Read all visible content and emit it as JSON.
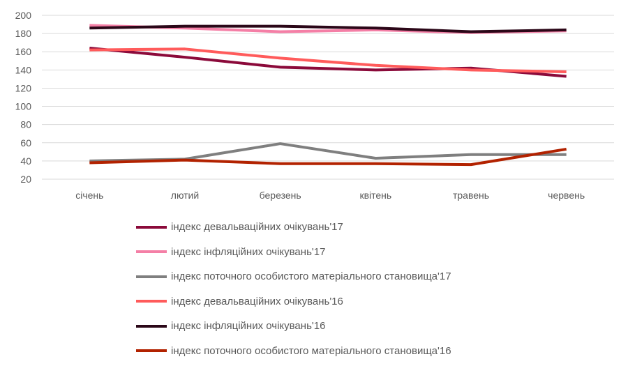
{
  "chart_data": {
    "type": "line",
    "title": "",
    "xlabel": "",
    "ylabel": "",
    "categories": [
      "січень",
      "лютий",
      "березень",
      "квітень",
      "травень",
      "червень"
    ],
    "ylim": [
      20,
      200
    ],
    "yticks": [
      20,
      40,
      60,
      80,
      100,
      120,
      140,
      160,
      180,
      200
    ],
    "grid": true,
    "legend_position": "bottom",
    "series": [
      {
        "name": "індекс девальваційних очікувань'17",
        "color": "#8B0A3A",
        "values": [
          164,
          154,
          143,
          140,
          142,
          133
        ]
      },
      {
        "name": "індекс інфляційних очікувань'17",
        "color": "#F47FA6",
        "values": [
          189,
          186,
          182,
          184,
          181,
          183
        ]
      },
      {
        "name": "індекс поточного особистого матеріального становища'17",
        "color": "#7F7F7F",
        "values": [
          40,
          42,
          59,
          43,
          47,
          47
        ]
      },
      {
        "name": "індекс девальваційних очікувань'16",
        "color": "#FF5B5B",
        "values": [
          162,
          163,
          153,
          145,
          140,
          138
        ]
      },
      {
        "name": "індекс інфляційних очікувань'16",
        "color": "#2B0718",
        "values": [
          186,
          188,
          188,
          186,
          182,
          184
        ]
      },
      {
        "name": "індекс поточного особистого матеріального становища'16",
        "color": "#B22200",
        "values": [
          38,
          41,
          37,
          37,
          36,
          53
        ]
      }
    ]
  }
}
